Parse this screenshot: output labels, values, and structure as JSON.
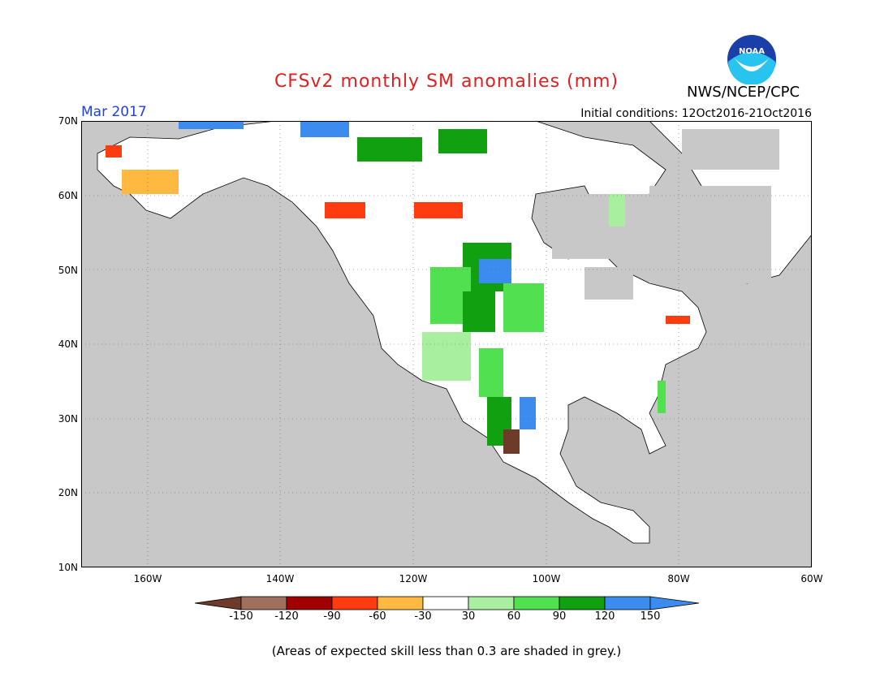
{
  "title": "CFSv2 monthly SM anomalies (mm)",
  "agency": "NWS/NCEP/CPC",
  "logo_text": "NOAA",
  "valid_month": "Mar 2017",
  "initial_conditions": "Initial conditions: 12Oct2016-21Oct2016",
  "lat_labels": [
    "70N",
    "60N",
    "50N",
    "40N",
    "30N",
    "20N",
    "10N"
  ],
  "lon_labels": [
    "160W",
    "140W",
    "120W",
    "100W",
    "80W",
    "60W"
  ],
  "colorbar": {
    "labels": [
      "-150",
      "-120",
      "-90",
      "-60",
      "-30",
      "30",
      "60",
      "90",
      "120",
      "150"
    ],
    "colors": [
      "#6e3b2b",
      "#a0705f",
      "#a00000",
      "#ff3b10",
      "#ffb840",
      "#ffffff",
      "#a8f0a0",
      "#50e050",
      "#10a010",
      "#3c8cf0",
      "#3c8cf0"
    ]
  },
  "footer": "(Areas of expected skill less than 0.3 are shaded in grey.)",
  "colors": {
    "ocean": "#c8c8c8",
    "land": "#ffffff",
    "title": "#e02020",
    "month": "#2040e0"
  }
}
